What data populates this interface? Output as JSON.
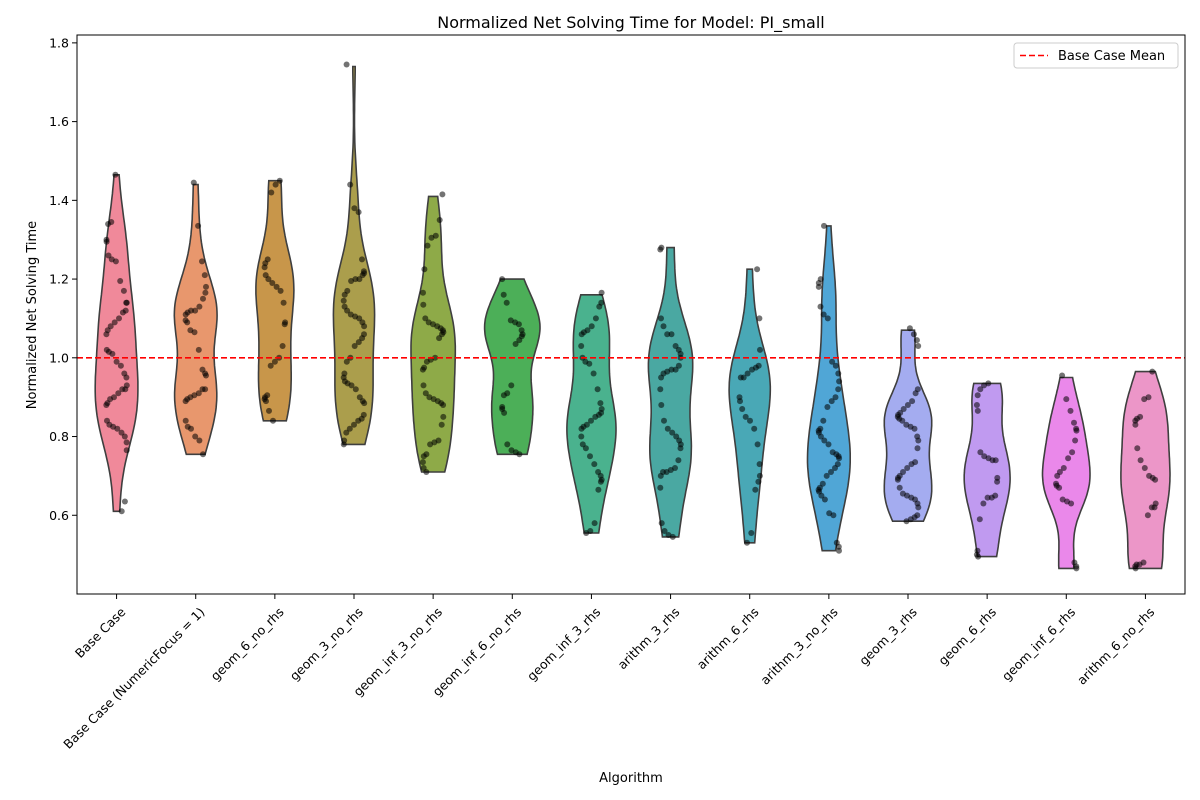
{
  "chart_data": {
    "type": "violin",
    "title": "Normalized Net Solving Time for Model: PI_small",
    "xlabel": "Algorithm",
    "ylabel": "Normalized Net Solving Time",
    "ylim": [
      0.4,
      1.82
    ],
    "yticks": [
      0.6,
      0.8,
      1.0,
      1.2,
      1.4,
      1.6,
      1.8
    ],
    "ytick_labels": [
      "0.6",
      "0.8",
      "1.0",
      "1.2",
      "1.4",
      "1.6",
      "1.8"
    ],
    "grid": false,
    "legend": {
      "placement": "top-right",
      "entries": [
        {
          "label": "Base Case Mean",
          "color": "#ff0000",
          "style": "dashed"
        }
      ]
    },
    "reference_line": {
      "label": "Base Case Mean",
      "value": 1.0,
      "color": "#ff0000"
    },
    "point_color": "#000000",
    "categories": [
      "Base Case",
      "Base Case (NumericFocus = 1)",
      "geom_6_no_rhs",
      "geom_3_no_rhs",
      "geom_inf_3_no_rhs",
      "geom_inf_6_no_rhs",
      "geom_inf_3_rhs",
      "arithm_3_rhs",
      "arithm_6_rhs",
      "arithm_3_no_rhs",
      "geom_3_rhs",
      "geom_6_rhs",
      "geom_inf_6_rhs",
      "arithm_6_no_rhs"
    ],
    "series": [
      {
        "name": "Base Case",
        "color": "#f0899a",
        "min": 0.61,
        "max": 1.465,
        "max_half_width": 0.27,
        "points": [
          1.465,
          1.345,
          1.34,
          1.3,
          1.295,
          1.26,
          1.25,
          1.245,
          1.195,
          1.17,
          1.14,
          1.14,
          1.12,
          1.115,
          1.1,
          1.09,
          1.08,
          1.07,
          1.06,
          1.02,
          1.015,
          1.01,
          0.99,
          0.98,
          0.96,
          0.95,
          0.93,
          0.92,
          0.92,
          0.91,
          0.9,
          0.895,
          0.885,
          0.88,
          0.84,
          0.83,
          0.825,
          0.82,
          0.81,
          0.8,
          0.785,
          0.765,
          0.635,
          0.61
        ]
      },
      {
        "name": "Base Case (NumericFocus = 1)",
        "color": "#e8976d",
        "min": 0.755,
        "max": 1.44,
        "max_half_width": 0.27,
        "points": [
          1.445,
          1.335,
          1.245,
          1.21,
          1.18,
          1.165,
          1.15,
          1.13,
          1.12,
          1.12,
          1.115,
          1.11,
          1.095,
          1.09,
          1.07,
          1.065,
          1.02,
          0.97,
          0.96,
          0.955,
          0.92,
          0.92,
          0.91,
          0.905,
          0.9,
          0.895,
          0.89,
          0.84,
          0.825,
          0.82,
          0.8,
          0.79,
          0.755
        ]
      },
      {
        "name": "geom_6_no_rhs",
        "color": "#c8964a",
        "min": 0.84,
        "max": 1.45,
        "max_half_width": 0.24,
        "points": [
          1.45,
          1.44,
          1.42,
          1.25,
          1.24,
          1.23,
          1.21,
          1.2,
          1.19,
          1.18,
          1.17,
          1.14,
          1.09,
          1.085,
          1.03,
          1.0,
          0.99,
          0.98,
          0.905,
          0.9,
          0.895,
          0.89,
          0.865,
          0.84
        ]
      },
      {
        "name": "geom_3_no_rhs",
        "color": "#ab9e4c",
        "min": 0.78,
        "max": 1.74,
        "max_half_width": 0.26,
        "points": [
          1.745,
          1.44,
          1.38,
          1.37,
          1.25,
          1.22,
          1.215,
          1.21,
          1.2,
          1.2,
          1.195,
          1.17,
          1.16,
          1.145,
          1.13,
          1.12,
          1.11,
          1.105,
          1.1,
          1.09,
          1.08,
          1.06,
          1.05,
          1.04,
          1.03,
          1.0,
          0.99,
          0.96,
          0.95,
          0.94,
          0.935,
          0.93,
          0.92,
          0.9,
          0.89,
          0.885,
          0.855,
          0.845,
          0.84,
          0.83,
          0.82,
          0.81,
          0.79,
          0.78
        ]
      },
      {
        "name": "geom_inf_3_no_rhs",
        "color": "#8eaa48",
        "min": 0.71,
        "max": 1.41,
        "max_half_width": 0.28,
        "points": [
          1.415,
          1.35,
          1.31,
          1.305,
          1.285,
          1.225,
          1.165,
          1.135,
          1.1,
          1.09,
          1.085,
          1.08,
          1.075,
          1.07,
          1.065,
          1.06,
          1.05,
          1.0,
          0.995,
          0.99,
          0.975,
          0.97,
          0.93,
          0.91,
          0.9,
          0.895,
          0.89,
          0.885,
          0.88,
          0.85,
          0.83,
          0.79,
          0.785,
          0.78,
          0.755,
          0.75,
          0.735,
          0.72,
          0.71
        ]
      },
      {
        "name": "geom_inf_6_no_rhs",
        "color": "#4caf58",
        "min": 0.755,
        "max": 1.2,
        "max_half_width": 0.35,
        "points": [
          1.2,
          1.16,
          1.14,
          1.095,
          1.09,
          1.085,
          1.07,
          1.06,
          1.055,
          1.045,
          1.035,
          0.93,
          0.91,
          0.905,
          0.875,
          0.87,
          0.86,
          0.78,
          0.765,
          0.76,
          0.755
        ]
      },
      {
        "name": "geom_inf_3_rhs",
        "color": "#4ab28e",
        "min": 0.555,
        "max": 1.16,
        "max_half_width": 0.31,
        "points": [
          1.165,
          1.14,
          1.13,
          1.1,
          1.08,
          1.07,
          1.065,
          1.06,
          1.03,
          1.0,
          0.99,
          0.985,
          0.96,
          0.92,
          0.885,
          0.87,
          0.86,
          0.855,
          0.85,
          0.84,
          0.83,
          0.825,
          0.82,
          0.8,
          0.78,
          0.77,
          0.75,
          0.73,
          0.71,
          0.7,
          0.69,
          0.685,
          0.665,
          0.58,
          0.56,
          0.555
        ]
      },
      {
        "name": "arithm_3_rhs",
        "color": "#4aa8a2",
        "min": 0.545,
        "max": 1.28,
        "max_half_width": 0.28,
        "points": [
          1.28,
          1.275,
          1.1,
          1.08,
          1.06,
          1.06,
          1.03,
          1.02,
          1.01,
          1.0,
          0.98,
          0.97,
          0.97,
          0.965,
          0.96,
          0.95,
          0.92,
          0.88,
          0.84,
          0.82,
          0.81,
          0.8,
          0.79,
          0.78,
          0.77,
          0.74,
          0.72,
          0.715,
          0.71,
          0.71,
          0.7,
          0.67,
          0.58,
          0.56,
          0.55,
          0.545
        ]
      },
      {
        "name": "arithm_6_rhs",
        "color": "#49a8b6",
        "min": 0.53,
        "max": 1.225,
        "max_half_width": 0.26,
        "points": [
          1.225,
          1.1,
          1.02,
          0.98,
          0.975,
          0.97,
          0.96,
          0.95,
          0.95,
          0.9,
          0.89,
          0.87,
          0.85,
          0.84,
          0.82,
          0.78,
          0.73,
          0.7,
          0.685,
          0.665,
          0.555,
          0.53
        ]
      },
      {
        "name": "arithm_3_no_rhs",
        "color": "#50a6d6",
        "min": 0.51,
        "max": 1.335,
        "max_half_width": 0.27,
        "points": [
          1.335,
          1.2,
          1.19,
          1.18,
          1.13,
          1.11,
          1.1,
          0.99,
          0.98,
          0.96,
          0.94,
          0.92,
          0.9,
          0.89,
          0.875,
          0.84,
          0.82,
          0.815,
          0.81,
          0.8,
          0.79,
          0.78,
          0.76,
          0.755,
          0.75,
          0.745,
          0.73,
          0.72,
          0.71,
          0.7,
          0.68,
          0.67,
          0.665,
          0.66,
          0.65,
          0.64,
          0.605,
          0.6,
          0.53,
          0.52,
          0.51
        ]
      },
      {
        "name": "geom_3_rhs",
        "color": "#a4acf0",
        "min": 0.585,
        "max": 1.07,
        "max_half_width": 0.3,
        "points": [
          1.075,
          1.06,
          1.045,
          1.03,
          0.92,
          0.91,
          0.89,
          0.88,
          0.87,
          0.86,
          0.855,
          0.85,
          0.845,
          0.84,
          0.83,
          0.825,
          0.82,
          0.8,
          0.79,
          0.77,
          0.735,
          0.73,
          0.72,
          0.71,
          0.7,
          0.695,
          0.69,
          0.67,
          0.655,
          0.65,
          0.645,
          0.64,
          0.63,
          0.62,
          0.6,
          0.595,
          0.59,
          0.585
        ]
      },
      {
        "name": "geom_6_rhs",
        "color": "#c09af0",
        "min": 0.495,
        "max": 0.935,
        "max_half_width": 0.29,
        "points": [
          0.935,
          0.93,
          0.92,
          0.905,
          0.88,
          0.865,
          0.76,
          0.75,
          0.745,
          0.74,
          0.74,
          0.695,
          0.685,
          0.65,
          0.645,
          0.645,
          0.63,
          0.59,
          0.51,
          0.5,
          0.495
        ]
      },
      {
        "name": "geom_inf_6_rhs",
        "color": "#ea88ea",
        "min": 0.465,
        "max": 0.95,
        "max_half_width": 0.3,
        "points": [
          0.955,
          0.895,
          0.865,
          0.835,
          0.82,
          0.815,
          0.79,
          0.76,
          0.745,
          0.72,
          0.71,
          0.7,
          0.68,
          0.675,
          0.67,
          0.64,
          0.635,
          0.63,
          0.48,
          0.47,
          0.465
        ]
      },
      {
        "name": "arithm_6_no_rhs",
        "color": "#ec96c8",
        "min": 0.465,
        "max": 0.965,
        "max_half_width": 0.31,
        "points": [
          0.965,
          0.9,
          0.895,
          0.85,
          0.845,
          0.84,
          0.83,
          0.77,
          0.74,
          0.72,
          0.7,
          0.695,
          0.69,
          0.63,
          0.62,
          0.62,
          0.6,
          0.48,
          0.475,
          0.475,
          0.47,
          0.465
        ]
      }
    ]
  }
}
